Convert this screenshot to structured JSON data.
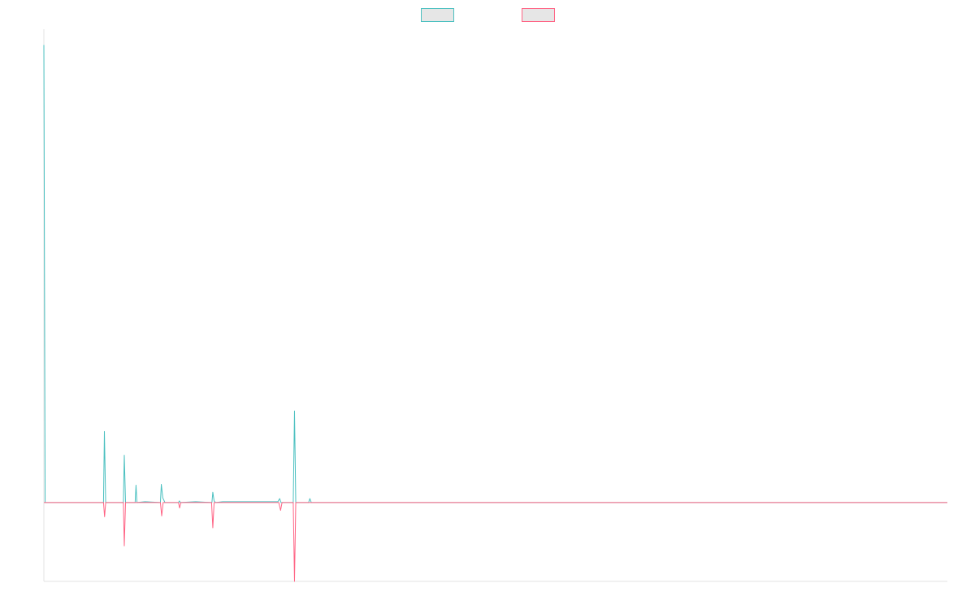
{
  "chart_data": {
    "type": "line",
    "title": "",
    "xlabel": "",
    "ylabel": "",
    "x_range": [
      0,
      500
    ],
    "ylim": [
      -1,
      6
    ],
    "grid": false,
    "legend": {
      "placement": "top-center",
      "entries": [
        {
          "name": "",
          "color": "#4bc0c0"
        },
        {
          "name": "",
          "color": "#ff6384"
        }
      ]
    },
    "series": [
      {
        "name": "",
        "color": "#4bc0c0",
        "points": [
          [
            0,
            5.8
          ],
          [
            0.7,
            0
          ],
          [
            7,
            0
          ],
          [
            18,
            0
          ],
          [
            33,
            0
          ],
          [
            33.5,
            0.9
          ],
          [
            34.2,
            0
          ],
          [
            44,
            0
          ],
          [
            44.5,
            0.6
          ],
          [
            45.2,
            0
          ],
          [
            50.5,
            0
          ],
          [
            51,
            0.22
          ],
          [
            51.5,
            0
          ],
          [
            56,
            0.01
          ],
          [
            64.5,
            0
          ],
          [
            65,
            0.23
          ],
          [
            65.8,
            0.06
          ],
          [
            67,
            0
          ],
          [
            74.5,
            0
          ],
          [
            75,
            0.02
          ],
          [
            75.5,
            0
          ],
          [
            84,
            0.01
          ],
          [
            93,
            0
          ],
          [
            93.5,
            0.13
          ],
          [
            94.2,
            0.02
          ],
          [
            95,
            0
          ],
          [
            99,
            0.01
          ],
          [
            129.5,
            0.01
          ],
          [
            130.5,
            0.05
          ],
          [
            131.2,
            0
          ],
          [
            138,
            0
          ],
          [
            138.7,
            1.16
          ],
          [
            139.4,
            0
          ],
          [
            146.5,
            0
          ],
          [
            147.2,
            0.05
          ],
          [
            148,
            0
          ],
          [
            500,
            0
          ]
        ]
      },
      {
        "name": "",
        "color": "#ff6384",
        "points": [
          [
            0,
            0
          ],
          [
            33,
            0
          ],
          [
            33.6,
            -0.18
          ],
          [
            34.2,
            0
          ],
          [
            44,
            0
          ],
          [
            44.5,
            -0.55
          ],
          [
            45.2,
            0
          ],
          [
            64.5,
            0
          ],
          [
            65.2,
            -0.17
          ],
          [
            66,
            0
          ],
          [
            74.5,
            0
          ],
          [
            75.1,
            -0.07
          ],
          [
            75.8,
            0
          ],
          [
            92.8,
            0
          ],
          [
            93.5,
            -0.32
          ],
          [
            94.2,
            0
          ],
          [
            130,
            0
          ],
          [
            131,
            -0.1
          ],
          [
            131.8,
            0
          ],
          [
            138,
            0
          ],
          [
            138.7,
            -1.0
          ],
          [
            139.4,
            0
          ],
          [
            500,
            0
          ]
        ]
      }
    ]
  }
}
